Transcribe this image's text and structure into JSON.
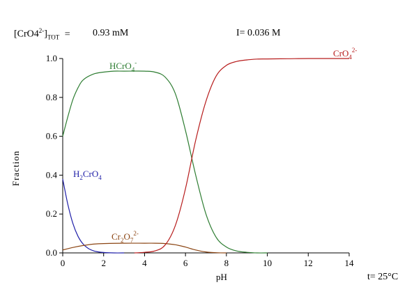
{
  "header": {
    "total_conc_label": "[CrO4",
    "total_conc_charge": "2-",
    "total_conc_close": "]",
    "total_conc_sub": "TOT",
    "total_conc_equals": "=",
    "total_conc_value": "0.93 mM",
    "ionic_strength": "I= 0.036 M"
  },
  "footer": {
    "temperature": "t= 25°C"
  },
  "colors": {
    "HCrO4-": "#2e7d32",
    "CrO4 2-": "#b71c1c",
    "H2CrO4": "#1f1fa8",
    "Cr2O7 2-": "#8b4513"
  },
  "chart_data": {
    "type": "line",
    "xlabel": "pH",
    "ylabel": "Fraction",
    "xlim": [
      0,
      14
    ],
    "ylim": [
      0,
      1
    ],
    "xticks": [
      "0",
      "2",
      "4",
      "6",
      "8",
      "10",
      "12",
      "14"
    ],
    "yticks": [
      "0.0",
      "0.2",
      "0.4",
      "0.6",
      "0.8",
      "1.0"
    ],
    "series": [
      {
        "name": "H2CrO4",
        "label_main": "H",
        "label_sub1": "2",
        "label_mid": "CrO",
        "label_sub2": "4",
        "label_sup": "",
        "x": [
          0,
          0.25,
          0.5,
          0.75,
          1.0,
          1.25,
          1.5,
          1.75,
          2.0,
          2.5,
          3.0
        ],
        "y": [
          0.38,
          0.25,
          0.15,
          0.085,
          0.045,
          0.023,
          0.011,
          0.005,
          0.002,
          0.0,
          0.0
        ]
      },
      {
        "name": "HCrO4-",
        "label_main": "HCrO",
        "label_sub1": "4",
        "label_mid": "",
        "label_sub2": "",
        "label_sup": "-",
        "x": [
          0,
          0.25,
          0.5,
          0.75,
          1.0,
          1.5,
          2.0,
          2.5,
          3.0,
          4.0,
          4.5,
          5.0,
          5.5,
          6.0,
          6.5,
          7.0,
          7.5,
          8.0,
          8.5,
          9.0,
          9.5,
          10.0
        ],
        "y": [
          0.6,
          0.7,
          0.79,
          0.85,
          0.89,
          0.92,
          0.93,
          0.935,
          0.935,
          0.935,
          0.93,
          0.905,
          0.82,
          0.63,
          0.4,
          0.2,
          0.08,
          0.03,
          0.01,
          0.003,
          0.0,
          0.0
        ]
      },
      {
        "name": "Cr2O7 2-",
        "label_main": "Cr",
        "label_sub1": "2",
        "label_mid": "O",
        "label_sub2": "7",
        "label_sup": "2-",
        "x": [
          0,
          0.5,
          1.0,
          1.5,
          2.0,
          3.0,
          4.0,
          4.5,
          5.0,
          5.5,
          6.0,
          6.5,
          7.0,
          7.5,
          8.0
        ],
        "y": [
          0.015,
          0.028,
          0.038,
          0.045,
          0.048,
          0.05,
          0.05,
          0.05,
          0.048,
          0.042,
          0.03,
          0.015,
          0.005,
          0.001,
          0.0
        ]
      },
      {
        "name": "CrO4 2-",
        "label_main": "CrO",
        "label_sub1": "4",
        "label_mid": "",
        "label_sub2": "",
        "label_sup": "2-",
        "x": [
          3.5,
          4.0,
          4.5,
          5.0,
          5.5,
          6.0,
          6.5,
          7.0,
          7.5,
          8.0,
          8.5,
          9.0,
          9.5,
          10.0,
          11.0,
          12.0,
          13.0,
          14.0
        ],
        "y": [
          0.0,
          0.003,
          0.01,
          0.04,
          0.14,
          0.33,
          0.58,
          0.78,
          0.91,
          0.965,
          0.985,
          0.993,
          0.997,
          0.998,
          0.999,
          1.0,
          1.0,
          1.0
        ]
      }
    ]
  }
}
